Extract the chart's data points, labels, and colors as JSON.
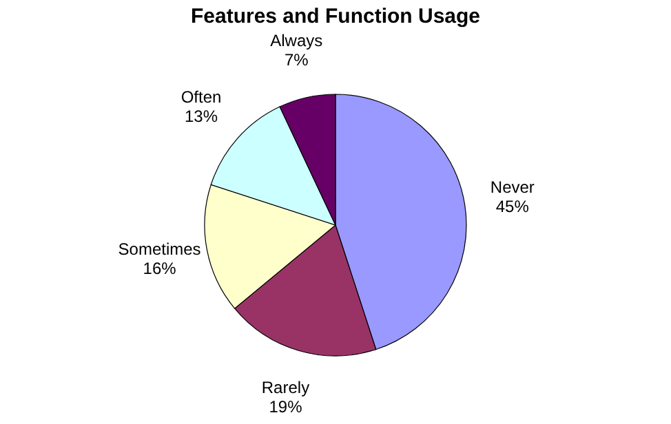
{
  "chart_data": {
    "type": "pie",
    "title": "Features and  Function Usage",
    "categories": [
      "Never",
      "Rarely",
      "Sometimes",
      "Often",
      "Always"
    ],
    "values": [
      45,
      19,
      16,
      13,
      7
    ],
    "value_labels": [
      "45%",
      "19%",
      "16%",
      "13%",
      "7%"
    ],
    "colors": [
      "#9999ff",
      "#993366",
      "#ffffcc",
      "#ccffff",
      "#660066"
    ],
    "legend": false
  }
}
